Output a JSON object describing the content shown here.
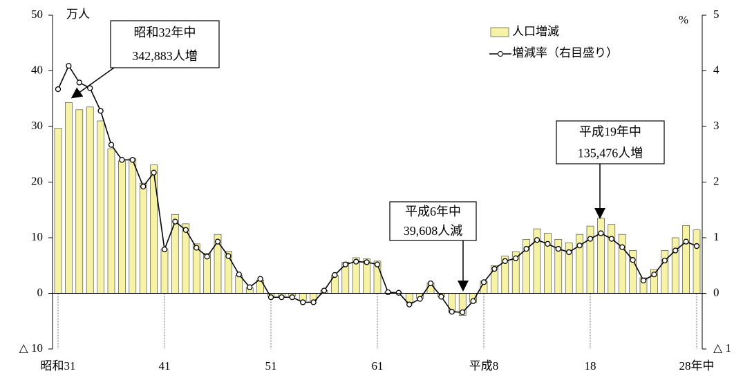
{
  "chart_data": {
    "type": "bar_line",
    "y_unit": "万人",
    "y2_unit": "%",
    "categories": [
      "昭和31",
      null,
      null,
      null,
      null,
      null,
      null,
      null,
      null,
      null,
      "41",
      null,
      null,
      null,
      null,
      null,
      null,
      null,
      null,
      null,
      "51",
      null,
      null,
      null,
      null,
      null,
      null,
      null,
      null,
      null,
      "61",
      null,
      null,
      null,
      null,
      null,
      null,
      null,
      null,
      null,
      "平成8",
      null,
      null,
      null,
      null,
      null,
      null,
      null,
      null,
      null,
      "18",
      null,
      null,
      null,
      null,
      null,
      null,
      null,
      null,
      null,
      "28年中"
    ],
    "series": [
      {
        "name": "人口増減",
        "type": "bar",
        "color": "#f7f3a6",
        "values": [
          29.7,
          34.3,
          33.0,
          33.5,
          31.0,
          26.0,
          23.8,
          24.2,
          19.8,
          23.1,
          8.0,
          14.2,
          12.5,
          8.9,
          7.2,
          10.6,
          7.6,
          3.2,
          1.0,
          2.4,
          -0.5,
          -0.5,
          -0.5,
          -1.3,
          -1.3,
          0.5,
          3.2,
          5.6,
          6.4,
          6.2,
          5.8,
          0.2,
          0.1,
          -1.6,
          -0.9,
          1.9,
          -0.6,
          -3.4,
          -3.96,
          -1.6,
          2.2,
          5.0,
          6.7,
          7.5,
          9.7,
          11.6,
          10.8,
          9.7,
          9.1,
          10.6,
          12.1,
          13.5,
          12.4,
          10.6,
          7.7,
          2.8,
          4.3,
          7.7,
          10.0,
          12.2,
          11.4
        ]
      },
      {
        "name": "増減率（右目盛り）",
        "type": "line",
        "axis": "y2",
        "color": "#000000",
        "values": [
          3.67,
          4.09,
          3.79,
          3.69,
          3.28,
          2.67,
          2.4,
          2.4,
          1.92,
          2.17,
          0.79,
          1.29,
          1.14,
          0.82,
          0.66,
          0.93,
          0.67,
          0.34,
          0.11,
          0.26,
          -0.07,
          -0.07,
          -0.07,
          -0.16,
          -0.16,
          0.05,
          0.33,
          0.52,
          0.57,
          0.56,
          0.52,
          0.02,
          0.01,
          -0.2,
          -0.1,
          0.18,
          -0.06,
          -0.33,
          -0.34,
          -0.14,
          0.2,
          0.44,
          0.58,
          0.63,
          0.8,
          0.96,
          0.89,
          0.8,
          0.74,
          0.86,
          0.98,
          1.08,
          0.98,
          0.83,
          0.6,
          0.23,
          0.34,
          0.59,
          0.77,
          0.93,
          0.85
        ]
      }
    ],
    "ylim": [
      -10,
      50
    ],
    "yticks": [
      {
        "value": -10,
        "label": "△ 10"
      },
      0,
      10,
      20,
      30,
      40,
      50
    ],
    "y2lim": [
      -1,
      5
    ],
    "y2ticks": [
      {
        "value": -1,
        "label": "△ 1"
      },
      0,
      1,
      2,
      3,
      4,
      5
    ],
    "annotations": [
      {
        "lines": [
          "昭和32年中",
          "342,883人増"
        ]
      },
      {
        "lines": [
          "平成6年中",
          "39,608人減"
        ]
      },
      {
        "lines": [
          "平成19年中",
          "135,476人増"
        ]
      }
    ]
  }
}
